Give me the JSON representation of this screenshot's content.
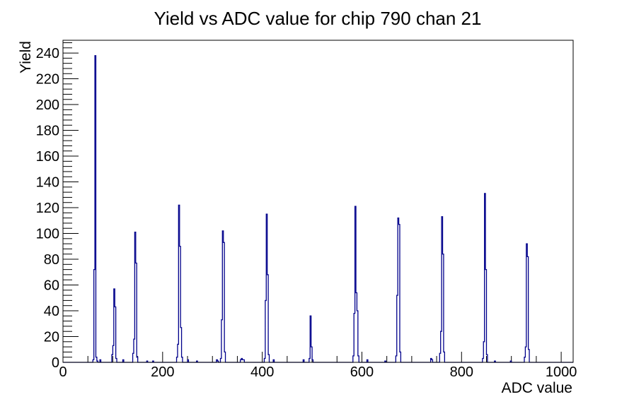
{
  "chart_data": {
    "type": "bar",
    "style": "step-histogram-outline",
    "title": "Yield vs ADC value for chip 790 chan 21",
    "xlabel": "ADC value",
    "ylabel": "Yield",
    "xlim": [
      0,
      1024
    ],
    "ylim": [
      0,
      249.9
    ],
    "x_major_ticks": [
      0,
      200,
      400,
      600,
      800,
      1000
    ],
    "x_minor_step": 50,
    "y_major_ticks": [
      0,
      20,
      40,
      60,
      80,
      100,
      120,
      140,
      160,
      180,
      200,
      220,
      240
    ],
    "y_minor_step": 4,
    "grid": false,
    "legend": "none",
    "bin_width": 2,
    "line_color": "#00008b",
    "axis_color": "#000000",
    "background_color": "#ffffff",
    "bins_note": "entries are [ADC bin center, yield]",
    "bins": [
      [
        61,
        2
      ],
      [
        63,
        72
      ],
      [
        65,
        238
      ],
      [
        67,
        4
      ],
      [
        69,
        1
      ],
      [
        75,
        2
      ],
      [
        99,
        6
      ],
      [
        101,
        13
      ],
      [
        103,
        57
      ],
      [
        105,
        43
      ],
      [
        107,
        3
      ],
      [
        121,
        2
      ],
      [
        141,
        7
      ],
      [
        143,
        18
      ],
      [
        145,
        101
      ],
      [
        147,
        77
      ],
      [
        149,
        4
      ],
      [
        169,
        1
      ],
      [
        181,
        1
      ],
      [
        229,
        4
      ],
      [
        231,
        14
      ],
      [
        233,
        122
      ],
      [
        235,
        90
      ],
      [
        237,
        27
      ],
      [
        239,
        4
      ],
      [
        251,
        2
      ],
      [
        269,
        1
      ],
      [
        309,
        2
      ],
      [
        311,
        1
      ],
      [
        317,
        3
      ],
      [
        319,
        33
      ],
      [
        321,
        102
      ],
      [
        323,
        93
      ],
      [
        325,
        8
      ],
      [
        357,
        2
      ],
      [
        359,
        3
      ],
      [
        361,
        2
      ],
      [
        363,
        2
      ],
      [
        405,
        3
      ],
      [
        407,
        48
      ],
      [
        409,
        115
      ],
      [
        411,
        68
      ],
      [
        413,
        6
      ],
      [
        423,
        2
      ],
      [
        483,
        2
      ],
      [
        495,
        3
      ],
      [
        497,
        36
      ],
      [
        499,
        12
      ],
      [
        501,
        2
      ],
      [
        583,
        5
      ],
      [
        585,
        38
      ],
      [
        587,
        121
      ],
      [
        589,
        54
      ],
      [
        591,
        40
      ],
      [
        593,
        5
      ],
      [
        611,
        2
      ],
      [
        647,
        1
      ],
      [
        669,
        5
      ],
      [
        671,
        52
      ],
      [
        673,
        112
      ],
      [
        675,
        107
      ],
      [
        677,
        8
      ],
      [
        739,
        3
      ],
      [
        741,
        2
      ],
      [
        757,
        7
      ],
      [
        759,
        24
      ],
      [
        761,
        113
      ],
      [
        763,
        84
      ],
      [
        765,
        8
      ],
      [
        843,
        3
      ],
      [
        845,
        16
      ],
      [
        847,
        131
      ],
      [
        849,
        72
      ],
      [
        851,
        6
      ],
      [
        867,
        1
      ],
      [
        899,
        1
      ],
      [
        927,
        4
      ],
      [
        929,
        12
      ],
      [
        931,
        92
      ],
      [
        933,
        82
      ],
      [
        935,
        10
      ]
    ]
  }
}
